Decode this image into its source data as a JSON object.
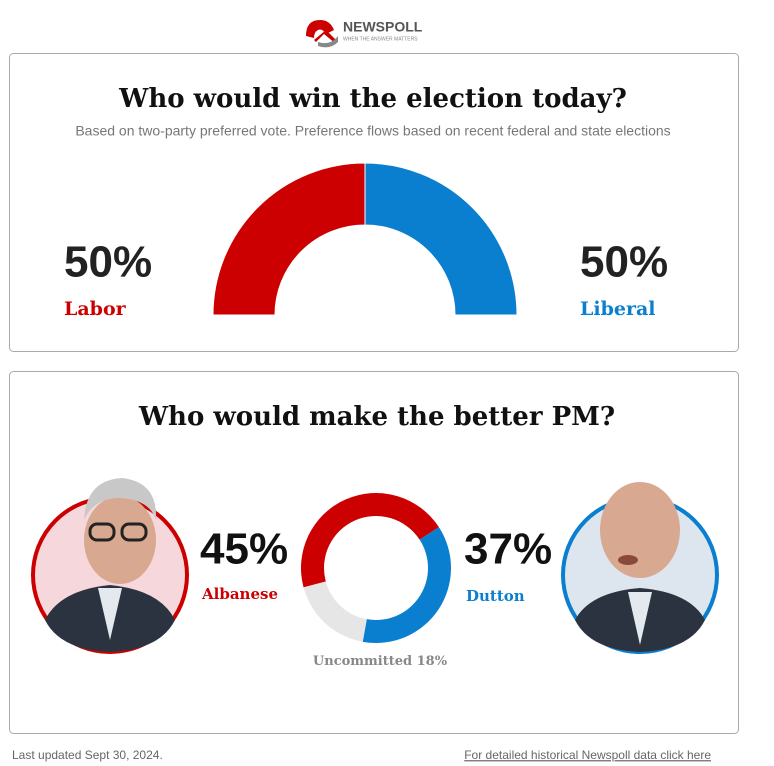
{
  "logo": {
    "name": "NEWSPOLL",
    "tagline": "WHEN THE ANSWER MATTERS"
  },
  "chart_data": [
    {
      "type": "halfdonut",
      "title": "Who would win the election today?",
      "subtitle": "Based on two-party preferred vote. Preference flows based on recent federal and state elections",
      "categories": [
        "Labor",
        "Liberal"
      ],
      "values": [
        50,
        50
      ],
      "value_labels": [
        "50%",
        "50%"
      ],
      "colors": [
        "#cc0000",
        "#0a7fcf"
      ]
    },
    {
      "type": "donut",
      "title": "Who would make the better PM?",
      "categories": [
        "Albanese",
        "Dutton",
        "Uncommitted"
      ],
      "values": [
        45,
        37,
        18
      ],
      "value_labels": [
        "45%",
        "37%",
        "18%"
      ],
      "colors": [
        "#cc0000",
        "#0a7fcf",
        "#e6e6e6"
      ]
    }
  ],
  "footer": {
    "updated": "Last updated Sept 30, 2024.",
    "link": "For detailed historical Newspoll data click here"
  }
}
